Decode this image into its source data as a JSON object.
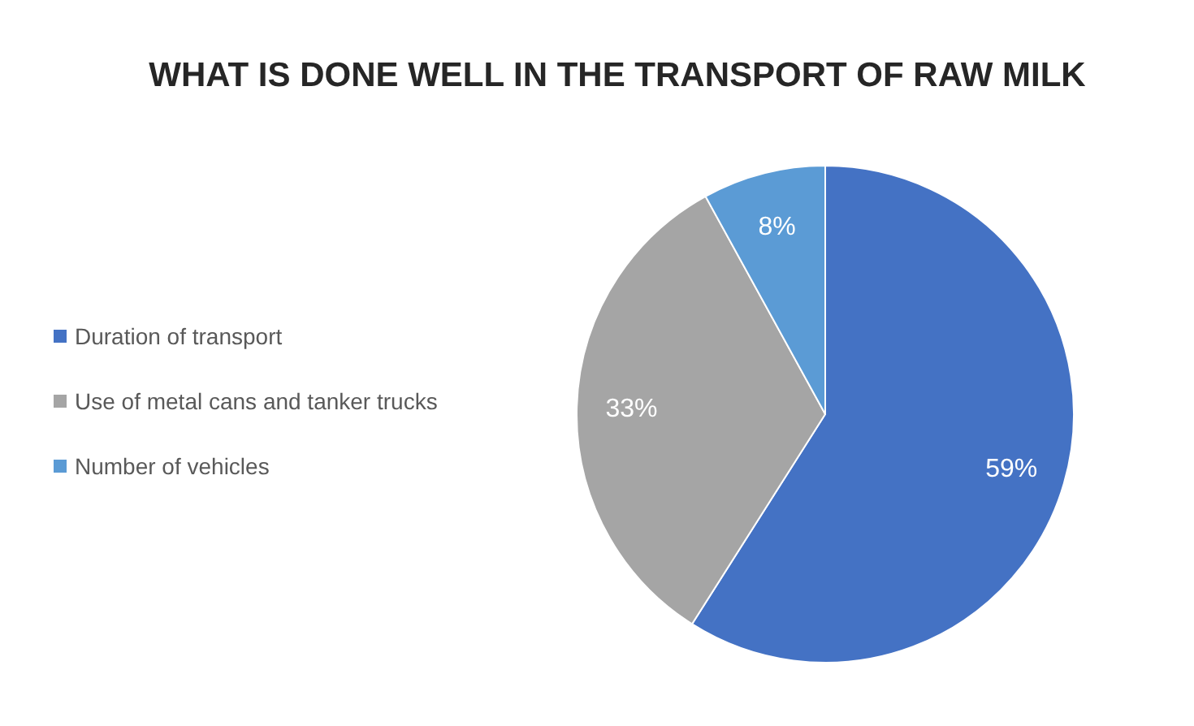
{
  "chart_data": {
    "type": "pie",
    "title": "WHAT IS DONE WELL IN THE TRANSPORT OF RAW MILK",
    "categories": [
      "Duration of transport",
      "Use of metal cans and tanker trucks",
      "Number of vehicles"
    ],
    "values": [
      59,
      33,
      8
    ],
    "colors": [
      "#4472c4",
      "#a5a5a5",
      "#5b9bd5"
    ],
    "value_labels": [
      "59%",
      "33%",
      "8%"
    ],
    "legend": "left"
  }
}
